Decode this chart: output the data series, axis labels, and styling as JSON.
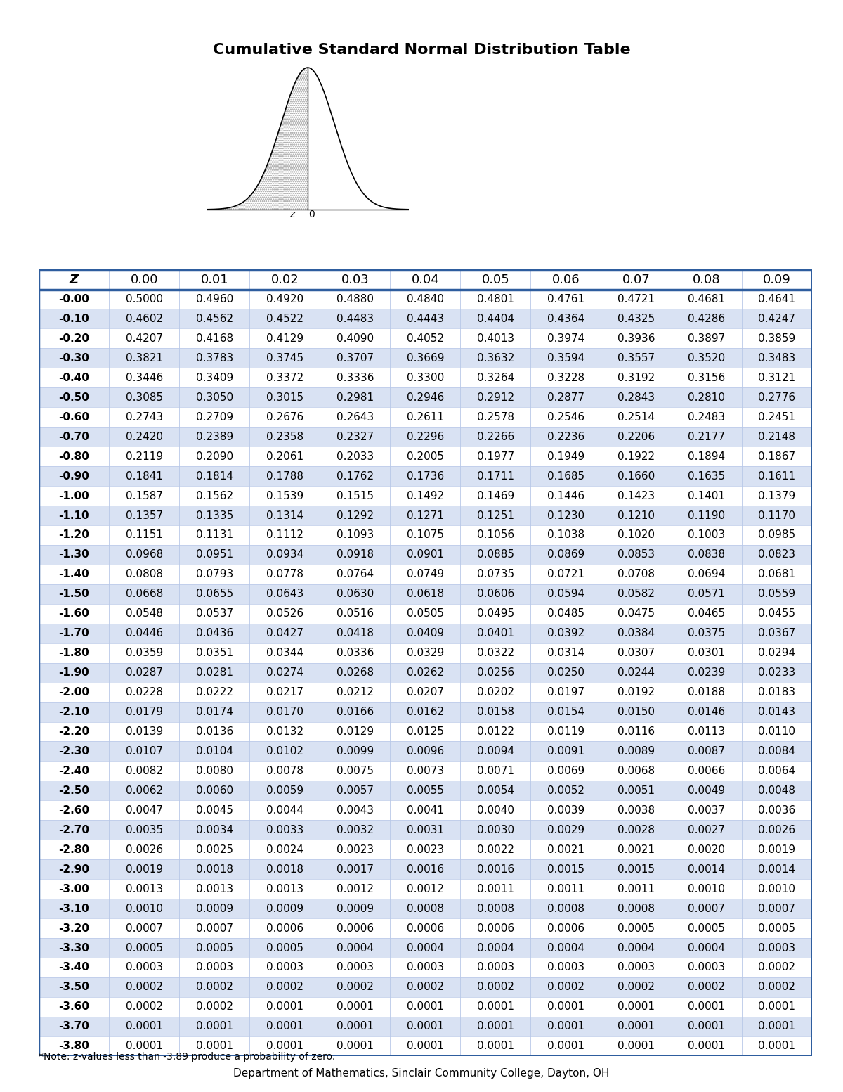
{
  "title": "Cumulative Standard Normal Distribution Table",
  "footer_note": "*Note: z-values less than -3.89 produce a probability of zero.",
  "footer_institution": "Department of Mathematics, Sinclair Community College, Dayton, OH",
  "col_headers": [
    "Z",
    "0.00",
    "0.01",
    "0.02",
    "0.03",
    "0.04",
    "0.05",
    "0.06",
    "0.07",
    "0.08",
    "0.09"
  ],
  "rows": [
    [
      "-0.00",
      "0.5000",
      "0.4960",
      "0.4920",
      "0.4880",
      "0.4840",
      "0.4801",
      "0.4761",
      "0.4721",
      "0.4681",
      "0.4641"
    ],
    [
      "-0.10",
      "0.4602",
      "0.4562",
      "0.4522",
      "0.4483",
      "0.4443",
      "0.4404",
      "0.4364",
      "0.4325",
      "0.4286",
      "0.4247"
    ],
    [
      "-0.20",
      "0.4207",
      "0.4168",
      "0.4129",
      "0.4090",
      "0.4052",
      "0.4013",
      "0.3974",
      "0.3936",
      "0.3897",
      "0.3859"
    ],
    [
      "-0.30",
      "0.3821",
      "0.3783",
      "0.3745",
      "0.3707",
      "0.3669",
      "0.3632",
      "0.3594",
      "0.3557",
      "0.3520",
      "0.3483"
    ],
    [
      "-0.40",
      "0.3446",
      "0.3409",
      "0.3372",
      "0.3336",
      "0.3300",
      "0.3264",
      "0.3228",
      "0.3192",
      "0.3156",
      "0.3121"
    ],
    [
      "-0.50",
      "0.3085",
      "0.3050",
      "0.3015",
      "0.2981",
      "0.2946",
      "0.2912",
      "0.2877",
      "0.2843",
      "0.2810",
      "0.2776"
    ],
    [
      "-0.60",
      "0.2743",
      "0.2709",
      "0.2676",
      "0.2643",
      "0.2611",
      "0.2578",
      "0.2546",
      "0.2514",
      "0.2483",
      "0.2451"
    ],
    [
      "-0.70",
      "0.2420",
      "0.2389",
      "0.2358",
      "0.2327",
      "0.2296",
      "0.2266",
      "0.2236",
      "0.2206",
      "0.2177",
      "0.2148"
    ],
    [
      "-0.80",
      "0.2119",
      "0.2090",
      "0.2061",
      "0.2033",
      "0.2005",
      "0.1977",
      "0.1949",
      "0.1922",
      "0.1894",
      "0.1867"
    ],
    [
      "-0.90",
      "0.1841",
      "0.1814",
      "0.1788",
      "0.1762",
      "0.1736",
      "0.1711",
      "0.1685",
      "0.1660",
      "0.1635",
      "0.1611"
    ],
    [
      "-1.00",
      "0.1587",
      "0.1562",
      "0.1539",
      "0.1515",
      "0.1492",
      "0.1469",
      "0.1446",
      "0.1423",
      "0.1401",
      "0.1379"
    ],
    [
      "-1.10",
      "0.1357",
      "0.1335",
      "0.1314",
      "0.1292",
      "0.1271",
      "0.1251",
      "0.1230",
      "0.1210",
      "0.1190",
      "0.1170"
    ],
    [
      "-1.20",
      "0.1151",
      "0.1131",
      "0.1112",
      "0.1093",
      "0.1075",
      "0.1056",
      "0.1038",
      "0.1020",
      "0.1003",
      "0.0985"
    ],
    [
      "-1.30",
      "0.0968",
      "0.0951",
      "0.0934",
      "0.0918",
      "0.0901",
      "0.0885",
      "0.0869",
      "0.0853",
      "0.0838",
      "0.0823"
    ],
    [
      "-1.40",
      "0.0808",
      "0.0793",
      "0.0778",
      "0.0764",
      "0.0749",
      "0.0735",
      "0.0721",
      "0.0708",
      "0.0694",
      "0.0681"
    ],
    [
      "-1.50",
      "0.0668",
      "0.0655",
      "0.0643",
      "0.0630",
      "0.0618",
      "0.0606",
      "0.0594",
      "0.0582",
      "0.0571",
      "0.0559"
    ],
    [
      "-1.60",
      "0.0548",
      "0.0537",
      "0.0526",
      "0.0516",
      "0.0505",
      "0.0495",
      "0.0485",
      "0.0475",
      "0.0465",
      "0.0455"
    ],
    [
      "-1.70",
      "0.0446",
      "0.0436",
      "0.0427",
      "0.0418",
      "0.0409",
      "0.0401",
      "0.0392",
      "0.0384",
      "0.0375",
      "0.0367"
    ],
    [
      "-1.80",
      "0.0359",
      "0.0351",
      "0.0344",
      "0.0336",
      "0.0329",
      "0.0322",
      "0.0314",
      "0.0307",
      "0.0301",
      "0.0294"
    ],
    [
      "-1.90",
      "0.0287",
      "0.0281",
      "0.0274",
      "0.0268",
      "0.0262",
      "0.0256",
      "0.0250",
      "0.0244",
      "0.0239",
      "0.0233"
    ],
    [
      "-2.00",
      "0.0228",
      "0.0222",
      "0.0217",
      "0.0212",
      "0.0207",
      "0.0202",
      "0.0197",
      "0.0192",
      "0.0188",
      "0.0183"
    ],
    [
      "-2.10",
      "0.0179",
      "0.0174",
      "0.0170",
      "0.0166",
      "0.0162",
      "0.0158",
      "0.0154",
      "0.0150",
      "0.0146",
      "0.0143"
    ],
    [
      "-2.20",
      "0.0139",
      "0.0136",
      "0.0132",
      "0.0129",
      "0.0125",
      "0.0122",
      "0.0119",
      "0.0116",
      "0.0113",
      "0.0110"
    ],
    [
      "-2.30",
      "0.0107",
      "0.0104",
      "0.0102",
      "0.0099",
      "0.0096",
      "0.0094",
      "0.0091",
      "0.0089",
      "0.0087",
      "0.0084"
    ],
    [
      "-2.40",
      "0.0082",
      "0.0080",
      "0.0078",
      "0.0075",
      "0.0073",
      "0.0071",
      "0.0069",
      "0.0068",
      "0.0066",
      "0.0064"
    ],
    [
      "-2.50",
      "0.0062",
      "0.0060",
      "0.0059",
      "0.0057",
      "0.0055",
      "0.0054",
      "0.0052",
      "0.0051",
      "0.0049",
      "0.0048"
    ],
    [
      "-2.60",
      "0.0047",
      "0.0045",
      "0.0044",
      "0.0043",
      "0.0041",
      "0.0040",
      "0.0039",
      "0.0038",
      "0.0037",
      "0.0036"
    ],
    [
      "-2.70",
      "0.0035",
      "0.0034",
      "0.0033",
      "0.0032",
      "0.0031",
      "0.0030",
      "0.0029",
      "0.0028",
      "0.0027",
      "0.0026"
    ],
    [
      "-2.80",
      "0.0026",
      "0.0025",
      "0.0024",
      "0.0023",
      "0.0023",
      "0.0022",
      "0.0021",
      "0.0021",
      "0.0020",
      "0.0019"
    ],
    [
      "-2.90",
      "0.0019",
      "0.0018",
      "0.0018",
      "0.0017",
      "0.0016",
      "0.0016",
      "0.0015",
      "0.0015",
      "0.0014",
      "0.0014"
    ],
    [
      "-3.00",
      "0.0013",
      "0.0013",
      "0.0013",
      "0.0012",
      "0.0012",
      "0.0011",
      "0.0011",
      "0.0011",
      "0.0010",
      "0.0010"
    ],
    [
      "-3.10",
      "0.0010",
      "0.0009",
      "0.0009",
      "0.0009",
      "0.0008",
      "0.0008",
      "0.0008",
      "0.0008",
      "0.0007",
      "0.0007"
    ],
    [
      "-3.20",
      "0.0007",
      "0.0007",
      "0.0006",
      "0.0006",
      "0.0006",
      "0.0006",
      "0.0006",
      "0.0005",
      "0.0005",
      "0.0005"
    ],
    [
      "-3.30",
      "0.0005",
      "0.0005",
      "0.0005",
      "0.0004",
      "0.0004",
      "0.0004",
      "0.0004",
      "0.0004",
      "0.0004",
      "0.0003"
    ],
    [
      "-3.40",
      "0.0003",
      "0.0003",
      "0.0003",
      "0.0003",
      "0.0003",
      "0.0003",
      "0.0003",
      "0.0003",
      "0.0003",
      "0.0002"
    ],
    [
      "-3.50",
      "0.0002",
      "0.0002",
      "0.0002",
      "0.0002",
      "0.0002",
      "0.0002",
      "0.0002",
      "0.0002",
      "0.0002",
      "0.0002"
    ],
    [
      "-3.60",
      "0.0002",
      "0.0002",
      "0.0001",
      "0.0001",
      "0.0001",
      "0.0001",
      "0.0001",
      "0.0001",
      "0.0001",
      "0.0001"
    ],
    [
      "-3.70",
      "0.0001",
      "0.0001",
      "0.0001",
      "0.0001",
      "0.0001",
      "0.0001",
      "0.0001",
      "0.0001",
      "0.0001",
      "0.0001"
    ],
    [
      "-3.80",
      "0.0001",
      "0.0001",
      "0.0001",
      "0.0001",
      "0.0001",
      "0.0001",
      "0.0001",
      "0.0001",
      "0.0001",
      "0.0001"
    ]
  ],
  "row_bg_even": "#FFFFFF",
  "row_bg_odd": "#D9E2F3",
  "cell_border_color": "#B8C8E8",
  "table_border_color": "#2E5D9E",
  "background_color": "#FFFFFF",
  "title_fontsize": 16,
  "header_fontsize": 13,
  "data_fontsize": 11,
  "footer_fontsize": 10,
  "institution_fontsize": 11
}
